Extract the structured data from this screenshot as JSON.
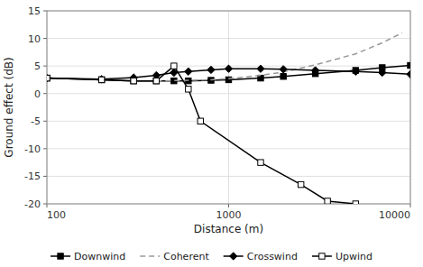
{
  "chart_data": {
    "type": "line",
    "xlabel": "Distance (m)",
    "ylabel": "Ground effect (dB)",
    "log": "x",
    "grid": true,
    "legend": "bottom",
    "xlim": [
      100,
      10000
    ],
    "xticks": [
      100,
      1000,
      10000
    ],
    "ylim": [
      -20,
      15
    ],
    "yticks": [
      -20,
      -15,
      -10,
      -5,
      0,
      5,
      10,
      15
    ],
    "series": [
      {
        "name": "Downwind",
        "color": "#000000",
        "marker": "square",
        "line_style": "solid",
        "x": [
          100,
          200,
          300,
          400,
          500,
          600,
          800,
          1000,
          1500,
          2000,
          3000,
          5000,
          7000,
          10000
        ],
        "values": [
          2.8,
          2.5,
          2.3,
          2.3,
          2.3,
          2.3,
          2.4,
          2.5,
          2.8,
          3.1,
          3.6,
          4.2,
          4.7,
          5.1
        ]
      },
      {
        "name": "Coherent",
        "color": "#999999",
        "marker": "none",
        "line_style": "dashed",
        "x": [
          400,
          600,
          800,
          1000,
          1500,
          2000,
          3000,
          5000,
          7000,
          9000
        ],
        "values": [
          2.3,
          2.4,
          2.5,
          2.7,
          3.3,
          3.9,
          5.2,
          7.2,
          9.2,
          11.0
        ]
      },
      {
        "name": "Crosswind",
        "color": "#000000",
        "marker": "diamond",
        "line_style": "solid",
        "x": [
          100,
          200,
          300,
          400,
          500,
          600,
          800,
          1000,
          1500,
          2000,
          3000,
          5000,
          7000,
          10000
        ],
        "values": [
          2.8,
          2.6,
          2.9,
          3.3,
          3.8,
          4.0,
          4.3,
          4.5,
          4.5,
          4.4,
          4.2,
          4.0,
          3.8,
          3.5
        ]
      },
      {
        "name": "Upwind",
        "color": "#000000",
        "marker": "open-square",
        "line_style": "solid",
        "x": [
          100,
          200,
          300,
          400,
          500,
          600,
          700,
          1500,
          2500,
          3500,
          5000
        ],
        "values": [
          2.8,
          2.5,
          2.3,
          2.3,
          5.0,
          0.8,
          -5.0,
          -12.5,
          -16.5,
          -19.5,
          -20.0
        ]
      }
    ]
  }
}
